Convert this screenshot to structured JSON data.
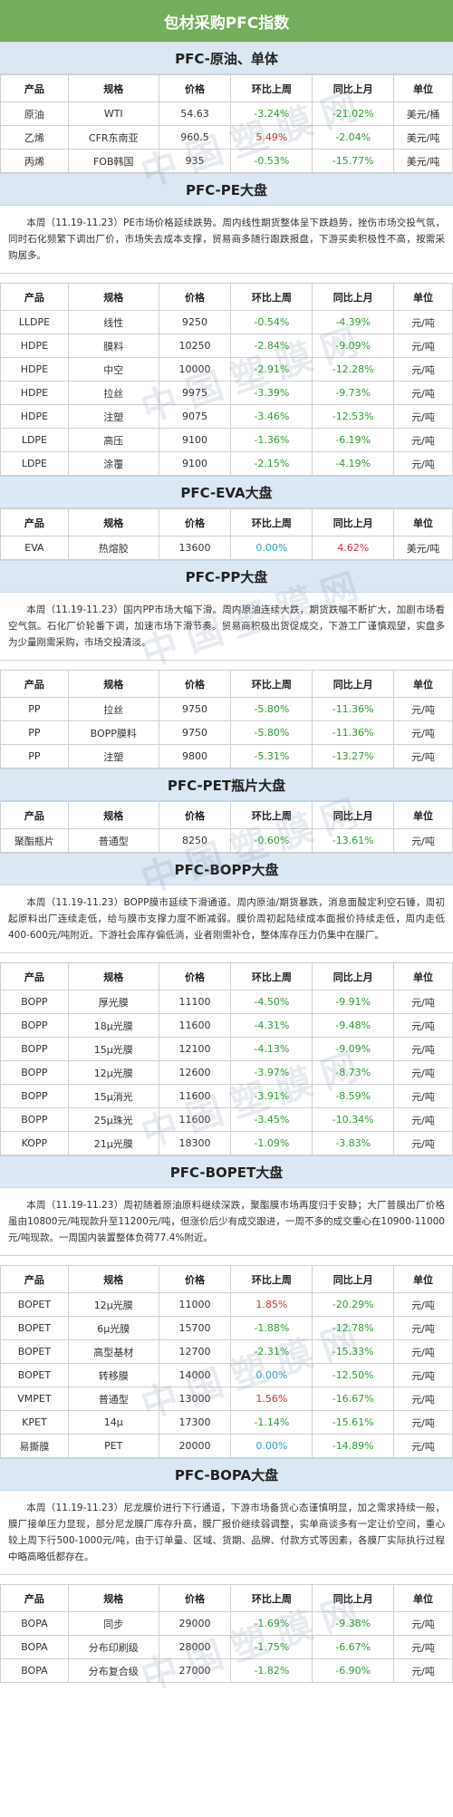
{
  "title": "包材采购PFC指数",
  "watermark": "中国塑膜网",
  "colors": {
    "header_green": "#74ad5c",
    "section_blue": "#dbe8f4",
    "negative": "#2e9d33",
    "positive": "#d43030",
    "zero": "#2a9fd6"
  },
  "columns": [
    "产品",
    "规格",
    "价格",
    "环比上周",
    "同比上月",
    "单位"
  ],
  "sections": [
    {
      "heading": "PFC-原油、单体",
      "paragraph": "",
      "rows": [
        [
          "原油",
          "WTI",
          "54.63",
          "-3.24%",
          "-21.02%",
          "美元/桶"
        ],
        [
          "乙烯",
          "CFR东南亚",
          "960.5",
          "5.49%",
          "-2.04%",
          "美元/吨"
        ],
        [
          "丙烯",
          "FOB韩国",
          "935",
          "-0.53%",
          "-15.77%",
          "美元/吨"
        ]
      ]
    },
    {
      "heading": "PFC-PE大盘",
      "paragraph": "本周（11.19-11.23）PE市场价格延续跌势。周内线性期货整体呈下跌趋势，挫伤市场交投气氛，同时石化频繁下调出厂价，市场失去成本支撑，贸易商多随行跟跌报盘，下游买卖积极性不高，按需采购居多。",
      "rows": [
        [
          "LLDPE",
          "线性",
          "9250",
          "-0.54%",
          "-4.39%",
          "元/吨"
        ],
        [
          "HDPE",
          "膜料",
          "10250",
          "-2.84%",
          "-9.09%",
          "元/吨"
        ],
        [
          "HDPE",
          "中空",
          "10000",
          "-2.91%",
          "-12.28%",
          "元/吨"
        ],
        [
          "HDPE",
          "拉丝",
          "9975",
          "-3.39%",
          "-9.73%",
          "元/吨"
        ],
        [
          "HDPE",
          "注塑",
          "9075",
          "-3.46%",
          "-12.53%",
          "元/吨"
        ],
        [
          "LDPE",
          "高压",
          "9100",
          "-1.36%",
          "-6.19%",
          "元/吨"
        ],
        [
          "LDPE",
          "涂覆",
          "9100",
          "-2.15%",
          "-4.19%",
          "元/吨"
        ]
      ]
    },
    {
      "heading": "PFC-EVA大盘",
      "paragraph": "",
      "rows": [
        [
          "EVA",
          "热熔胶",
          "13600",
          "0.00%",
          "4.62%",
          "美元/吨"
        ]
      ]
    },
    {
      "heading": "PFC-PP大盘",
      "paragraph": "本周（11.19-11.23）国内PP市场大幅下滑。周内原油连续大跌，期货跌幅不断扩大，加剧市场看空气氛。石化厂价轮番下调，加速市场下滑节奏。贸易商积极出货促成交，下游工厂谨慎观望，实盘多为少量刚需采购，市场交投清淡。",
      "rows": [
        [
          "PP",
          "拉丝",
          "9750",
          "-5.80%",
          "-11.36%",
          "元/吨"
        ],
        [
          "PP",
          "BOPP膜料",
          "9750",
          "-5.80%",
          "-11.36%",
          "元/吨"
        ],
        [
          "PP",
          "注塑",
          "9800",
          "-5.31%",
          "-13.27%",
          "元/吨"
        ]
      ]
    },
    {
      "heading": "PFC-PET瓶片大盘",
      "paragraph": "",
      "rows": [
        [
          "聚酯瓶片",
          "普通型",
          "8250",
          "-0.60%",
          "-13.61%",
          "元/吨"
        ]
      ]
    },
    {
      "heading": "PFC-BOPP大盘",
      "paragraph": "本周（11.19-11.23）BOPP膜市延续下滑通道。周内原油/期货暴跌，消息面酸定利空石锤，周初起原料出厂连续走低，给与膜市支撑力度不断减弱。膜价周初起陆续成本面报价持续走低，周内走低400-600元/吨附近。下游社会库存偏低淌，业者刚需补仓，整体库存压力仍集中在膜厂。",
      "rows": [
        [
          "BOPP",
          "厚光膜",
          "11100",
          "-4.50%",
          "-9.91%",
          "元/吨"
        ],
        [
          "BOPP",
          "18μ光膜",
          "11600",
          "-4.31%",
          "-9.48%",
          "元/吨"
        ],
        [
          "BOPP",
          "15μ光膜",
          "12100",
          "-4.13%",
          "-9.09%",
          "元/吨"
        ],
        [
          "BOPP",
          "12μ光膜",
          "12600",
          "-3.97%",
          "-8.73%",
          "元/吨"
        ],
        [
          "BOPP",
          "15μ消光",
          "11600",
          "-3.91%",
          "-8.59%",
          "元/吨"
        ],
        [
          "BOPP",
          "25μ珠光",
          "11600",
          "-3.45%",
          "-10.34%",
          "元/吨"
        ],
        [
          "KOPP",
          "21μ光膜",
          "18300",
          "-1.09%",
          "-3.83%",
          "元/吨"
        ]
      ]
    },
    {
      "heading": "PFC-BOPET大盘",
      "paragraph": "本周（11.19-11.23）周初随着原油原料继续深跌，聚酯膜市场再度归于安静；大厂普膜出厂价格虽由10800元/吨现款升至11200元/吨，但涨价后少有成交跟进，一周不多的成交重心在10900-11000元/吨现款。一周国内装置整体负荷77.4%附近。",
      "rows": [
        [
          "BOPET",
          "12μ光膜",
          "11000",
          "1.85%",
          "-20.29%",
          "元/吨"
        ],
        [
          "BOPET",
          "6μ光膜",
          "15700",
          "-1.88%",
          "-12.78%",
          "元/吨"
        ],
        [
          "BOPET",
          "高型基材",
          "12700",
          "-2.31%",
          "-15.33%",
          "元/吨"
        ],
        [
          "BOPET",
          "转移膜",
          "14000",
          "0.00%",
          "-12.50%",
          "元/吨"
        ],
        [
          "VMPET",
          "普通型",
          "13000",
          "1.56%",
          "-16.67%",
          "元/吨"
        ],
        [
          "KPET",
          "14μ",
          "17300",
          "-1.14%",
          "-15.61%",
          "元/吨"
        ],
        [
          "易撕膜",
          "PET",
          "20000",
          "0.00%",
          "-14.89%",
          "元/吨"
        ]
      ]
    },
    {
      "heading": "PFC-BOPA大盘",
      "paragraph": "本周（11.19-11.23）尼龙膜价进行下行通道，下游市场备货心态谨慎明显，加之需求持续一般，膜厂接单压力显现，部分尼龙膜厂库存升高，膜厂报价继续弱调整，实单商谈多有一定让价空间，重心较上周下行500-1000元/吨，由于订单量、区域、货期、品牌、付款方式等因素，各膜厂实际执行过程中略高略低都存在。",
      "rows": [
        [
          "BOPA",
          "同步",
          "29000",
          "-1.69%",
          "-9.38%",
          "元/吨"
        ],
        [
          "BOPA",
          "分布印刷级",
          "28000",
          "-1.75%",
          "-6.67%",
          "元/吨"
        ],
        [
          "BOPA",
          "分布复合级",
          "27000",
          "-1.82%",
          "-6.90%",
          "元/吨"
        ]
      ]
    }
  ]
}
